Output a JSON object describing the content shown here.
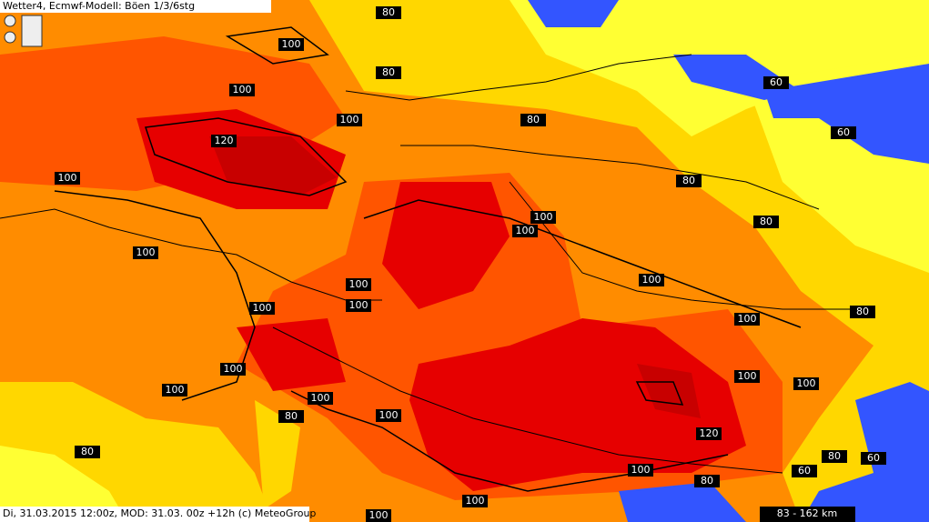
{
  "header": {
    "title": "Wetter4, Ecmwf-Modell: Böen 1/3/6stg"
  },
  "footer": {
    "text": "Di, 31.03.2015 12:00z, MOD: 31.03. 00z +12h (c) MeteoGroup",
    "scale": "83 - 162 km"
  },
  "contour_labels": [
    80,
    100,
    100,
    80,
    100,
    80,
    60,
    60,
    120,
    100,
    80,
    100,
    100,
    80,
    100,
    100,
    100,
    100,
    100,
    100,
    80,
    100,
    100,
    100,
    100,
    100,
    100,
    80,
    120,
    80,
    80,
    60,
    100,
    60,
    80,
    100,
    100
  ]
}
